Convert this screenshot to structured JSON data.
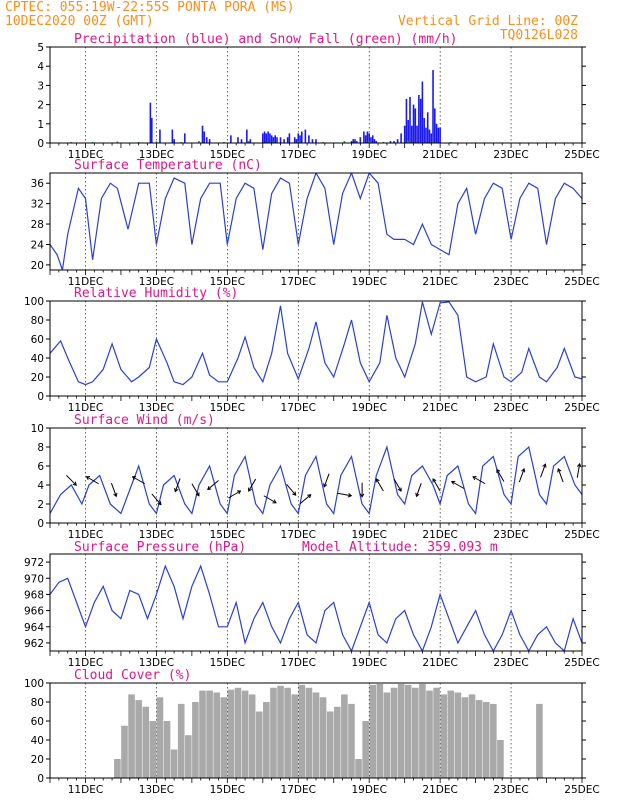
{
  "header": {
    "line1_left": "CPTEC:   055:19W-22:55S   PONTA PORA (MS)",
    "line2_left": "10DEC2020 00Z (GMT)",
    "line2_right": "Vertical Grid Line: 00Z",
    "line3_right": "TQ0126L028"
  },
  "colors": {
    "precip": "#1a1aee",
    "snow": "#1a9a1a",
    "line": "#2a3fd6",
    "cloud": "#a9a9a9",
    "title": "#e0168a",
    "header": "#ff8c1a"
  },
  "x_axis": {
    "ticks": [
      "11DEC",
      "13DEC",
      "15DEC",
      "17DEC",
      "19DEC",
      "21DEC",
      "23DEC",
      "25DEC"
    ],
    "tick_days": [
      11,
      13,
      15,
      17,
      19,
      21,
      23,
      25
    ],
    "start_day": 10,
    "end_day": 25
  },
  "chart_data": [
    {
      "id": "precip",
      "type": "bar",
      "title": "Precipitation (blue) and Snow Fall (green) (mm/h)",
      "ylim": [
        0,
        5
      ],
      "yticks": [
        0,
        1,
        2,
        3,
        4,
        5
      ],
      "x": [
        12.83,
        12.87,
        13.1,
        13.45,
        13.5,
        13.8,
        14.3,
        14.35,
        14.42,
        14.5,
        15.1,
        15.3,
        15.4,
        15.55,
        15.65,
        16.0,
        16.05,
        16.1,
        16.15,
        16.2,
        16.25,
        16.3,
        16.35,
        16.4,
        16.5,
        16.6,
        16.7,
        16.75,
        16.9,
        16.95,
        17.0,
        17.05,
        17.1,
        17.2,
        17.3,
        17.4,
        17.5,
        18.5,
        18.55,
        18.6,
        18.65,
        18.75,
        18.85,
        18.9,
        18.95,
        19.0,
        19.05,
        19.1,
        19.15,
        19.2,
        19.6,
        19.7,
        19.8,
        19.9,
        20.0,
        20.05,
        20.1,
        20.15,
        20.2,
        20.25,
        20.3,
        20.35,
        20.4,
        20.45,
        20.5,
        20.55,
        20.6,
        20.65,
        20.7,
        20.75,
        20.8,
        20.85,
        20.9,
        20.95,
        21.0
      ],
      "values": [
        2.1,
        1.3,
        0.7,
        0.7,
        0.2,
        0.5,
        0.9,
        0.6,
        0.3,
        0.2,
        0.4,
        0.3,
        0.2,
        0.7,
        0.2,
        0.5,
        0.6,
        0.5,
        0.6,
        0.5,
        0.4,
        0.3,
        0.4,
        0.3,
        0.3,
        0.2,
        0.3,
        0.5,
        0.3,
        0.2,
        0.5,
        0.4,
        0.6,
        0.7,
        0.4,
        0.2,
        0.2,
        0.1,
        0.2,
        0.2,
        0.1,
        0.3,
        0.6,
        0.4,
        0.6,
        0.5,
        0.3,
        0.4,
        0.2,
        0.1,
        0.1,
        0.1,
        0.2,
        0.5,
        0.9,
        2.3,
        1.2,
        2.4,
        0.9,
        2.0,
        1.8,
        0.9,
        2.5,
        2.3,
        3.2,
        1.3,
        0.8,
        1.6,
        0.7,
        0.5,
        3.8,
        1.8,
        1.0,
        0.8,
        0.8
      ],
      "snow_x": [
        10.6,
        11.2,
        11.9,
        12.5,
        13.0,
        13.7,
        14.2,
        14.9,
        15.6,
        16.3,
        17.0,
        17.7,
        18.3,
        19.0,
        19.4,
        20.1,
        20.8,
        21.3
      ],
      "snow_values": [
        0.05,
        0.05,
        0.08,
        0.05,
        0.08,
        0.05,
        0.1,
        0.05,
        0.1,
        0.08,
        0.1,
        0.05,
        0.1,
        0.08,
        0.05,
        0.1,
        0.08,
        0.05
      ]
    },
    {
      "id": "temp",
      "type": "line",
      "title": "Surface Temperature (nC)",
      "ylim": [
        19,
        38
      ],
      "yticks": [
        20,
        24,
        28,
        32,
        36
      ],
      "x": [
        10.0,
        10.2,
        10.35,
        10.5,
        10.8,
        11.0,
        11.2,
        11.45,
        11.7,
        11.9,
        12.2,
        12.5,
        12.8,
        13.0,
        13.25,
        13.5,
        13.8,
        14.0,
        14.25,
        14.5,
        14.8,
        15.0,
        15.25,
        15.5,
        15.75,
        16.0,
        16.25,
        16.5,
        16.75,
        17.0,
        17.25,
        17.5,
        17.75,
        18.0,
        18.25,
        18.5,
        18.75,
        19.0,
        19.25,
        19.5,
        19.7,
        20.0,
        20.25,
        20.5,
        20.75,
        21.0,
        21.25,
        21.5,
        21.75,
        22.0,
        22.25,
        22.5,
        22.75,
        23.0,
        23.25,
        23.5,
        23.75,
        24.0,
        24.25,
        24.5,
        24.75,
        25.0
      ],
      "y": [
        24,
        22,
        19,
        26,
        35,
        33,
        21,
        33,
        36,
        35,
        27,
        36,
        36,
        24,
        33,
        37,
        36,
        24,
        33,
        36,
        36,
        24,
        33,
        36,
        35,
        23,
        34,
        37,
        36,
        24,
        33,
        38,
        35,
        24,
        34,
        38,
        33,
        38,
        36,
        26,
        25,
        25,
        24,
        28,
        24,
        23,
        22,
        32,
        35,
        26,
        33,
        36,
        35,
        25,
        33,
        36,
        35,
        24,
        33,
        36,
        35,
        33
      ]
    },
    {
      "id": "rh",
      "type": "line",
      "title": "Relative Humidity (%)",
      "ylim": [
        0,
        100
      ],
      "yticks": [
        0,
        20,
        40,
        60,
        80,
        100
      ],
      "x": [
        10.0,
        10.3,
        10.5,
        10.8,
        11.0,
        11.2,
        11.5,
        11.75,
        12.0,
        12.3,
        12.5,
        12.8,
        13.0,
        13.3,
        13.5,
        13.75,
        14.0,
        14.3,
        14.5,
        14.75,
        15.0,
        15.3,
        15.5,
        15.75,
        16.0,
        16.25,
        16.5,
        16.7,
        17.0,
        17.3,
        17.5,
        17.75,
        18.0,
        18.3,
        18.5,
        18.75,
        19.0,
        19.3,
        19.5,
        19.75,
        20.0,
        20.3,
        20.5,
        20.75,
        21.0,
        21.25,
        21.5,
        21.75,
        22.0,
        22.3,
        22.5,
        22.8,
        23.0,
        23.3,
        23.5,
        23.8,
        24.0,
        24.3,
        24.5,
        24.8,
        25.0
      ],
      "y": [
        45,
        58,
        40,
        15,
        12,
        15,
        28,
        55,
        28,
        15,
        20,
        30,
        60,
        35,
        15,
        12,
        20,
        45,
        22,
        15,
        15,
        40,
        62,
        30,
        15,
        45,
        95,
        45,
        18,
        50,
        78,
        35,
        20,
        55,
        80,
        35,
        15,
        35,
        85,
        40,
        20,
        55,
        99,
        65,
        98,
        99,
        85,
        20,
        15,
        20,
        55,
        20,
        15,
        25,
        50,
        20,
        15,
        30,
        50,
        20,
        18
      ]
    },
    {
      "id": "wind",
      "type": "line",
      "title": "Surface Wind (m/s)",
      "ylim": [
        0,
        10
      ],
      "yticks": [
        0,
        2,
        4,
        6,
        8,
        10
      ],
      "x": [
        10.0,
        10.3,
        10.6,
        10.9,
        11.1,
        11.4,
        11.7,
        12.0,
        12.2,
        12.5,
        12.8,
        13.0,
        13.2,
        13.5,
        13.8,
        14.0,
        14.2,
        14.5,
        14.8,
        15.0,
        15.2,
        15.5,
        15.8,
        16.0,
        16.2,
        16.5,
        16.8,
        17.0,
        17.2,
        17.5,
        17.8,
        18.0,
        18.2,
        18.5,
        18.8,
        19.0,
        19.2,
        19.5,
        19.8,
        20.0,
        20.2,
        20.5,
        20.8,
        21.0,
        21.2,
        21.5,
        21.8,
        22.0,
        22.2,
        22.5,
        22.8,
        23.0,
        23.2,
        23.5,
        23.8,
        24.0,
        24.2,
        24.5,
        24.8,
        25.0
      ],
      "y": [
        1,
        3,
        4,
        2,
        4,
        5,
        2,
        1,
        3,
        6,
        2,
        1,
        4,
        5,
        2,
        1,
        4,
        6,
        2,
        1,
        5,
        7,
        2,
        1,
        4,
        6,
        2,
        1,
        5,
        7,
        2,
        1,
        5,
        7,
        2,
        1,
        5,
        8,
        3,
        2,
        5,
        6,
        4,
        2,
        5,
        6,
        2,
        1,
        6,
        7,
        3,
        2,
        7,
        8,
        3,
        2,
        6,
        7,
        4,
        3
      ],
      "barbs": [
        {
          "x": 10.6,
          "y": 4.5,
          "dir": 135
        },
        {
          "x": 11.2,
          "y": 4.5,
          "dir": 300
        },
        {
          "x": 11.8,
          "y": 3.5,
          "dir": 160
        },
        {
          "x": 12.5,
          "y": 4.5,
          "dir": 300
        },
        {
          "x": 13.0,
          "y": 2.5,
          "dir": 140
        },
        {
          "x": 13.6,
          "y": 4.0,
          "dir": 200
        },
        {
          "x": 14.1,
          "y": 3.5,
          "dir": 150
        },
        {
          "x": 14.6,
          "y": 4.0,
          "dir": 230
        },
        {
          "x": 15.2,
          "y": 3.0,
          "dir": 60
        },
        {
          "x": 15.7,
          "y": 4.0,
          "dir": 210
        },
        {
          "x": 16.2,
          "y": 2.5,
          "dir": 120
        },
        {
          "x": 16.8,
          "y": 3.5,
          "dir": 140
        },
        {
          "x": 17.2,
          "y": 2.5,
          "dir": 50
        },
        {
          "x": 17.8,
          "y": 4.5,
          "dir": 200
        },
        {
          "x": 18.3,
          "y": 3.0,
          "dir": 100
        },
        {
          "x": 18.8,
          "y": 3.5,
          "dir": 180
        },
        {
          "x": 19.3,
          "y": 4.0,
          "dir": 330
        },
        {
          "x": 19.8,
          "y": 4.0,
          "dir": 150
        },
        {
          "x": 20.4,
          "y": 3.5,
          "dir": 200
        },
        {
          "x": 20.9,
          "y": 4.0,
          "dir": 330
        },
        {
          "x": 21.5,
          "y": 4.0,
          "dir": 300
        },
        {
          "x": 22.1,
          "y": 4.5,
          "dir": 300
        },
        {
          "x": 22.7,
          "y": 5.0,
          "dir": 330
        },
        {
          "x": 23.3,
          "y": 5.0,
          "dir": 20
        },
        {
          "x": 23.9,
          "y": 5.5,
          "dir": 20
        },
        {
          "x": 24.4,
          "y": 5.0,
          "dir": 340
        },
        {
          "x": 24.9,
          "y": 5.5,
          "dir": 10
        }
      ]
    },
    {
      "id": "pressure",
      "type": "line",
      "title": "Surface Pressure (hPa)",
      "subtitle": "Model Altitude: 359.093 m",
      "ylim": [
        961,
        973
      ],
      "yticks": [
        962,
        964,
        966,
        968,
        970,
        972
      ],
      "x": [
        10.0,
        10.25,
        10.5,
        10.75,
        11.0,
        11.25,
        11.5,
        11.75,
        12.0,
        12.25,
        12.5,
        12.75,
        13.0,
        13.25,
        13.5,
        13.75,
        14.0,
        14.25,
        14.5,
        14.75,
        15.0,
        15.25,
        15.5,
        15.75,
        16.0,
        16.25,
        16.5,
        16.75,
        17.0,
        17.25,
        17.5,
        17.75,
        18.0,
        18.25,
        18.5,
        18.75,
        19.0,
        19.25,
        19.5,
        19.75,
        20.0,
        20.25,
        20.5,
        20.75,
        21.0,
        21.25,
        21.5,
        21.75,
        22.0,
        22.25,
        22.5,
        22.75,
        23.0,
        23.25,
        23.5,
        23.75,
        24.0,
        24.25,
        24.5,
        24.75,
        25.0
      ],
      "y": [
        968,
        969.5,
        970,
        967,
        964,
        967,
        969,
        966,
        965,
        968.5,
        968,
        965,
        968,
        971.5,
        969,
        965,
        969,
        971.5,
        968,
        964,
        964,
        967,
        962,
        965,
        967,
        964,
        962,
        965,
        967,
        963,
        962,
        966,
        967,
        963,
        961,
        964,
        967,
        963,
        962,
        965,
        966,
        963,
        961,
        964,
        968,
        965,
        962,
        964,
        966,
        963,
        961,
        963,
        966,
        963,
        961,
        963,
        964,
        962,
        961,
        965,
        962
      ]
    },
    {
      "id": "cloud",
      "type": "bar",
      "title": "Cloud Cover (%)",
      "ylim": [
        0,
        100
      ],
      "yticks": [
        0,
        20,
        40,
        60,
        80,
        100
      ],
      "x": [
        11.9,
        12.1,
        12.3,
        12.5,
        12.7,
        12.9,
        13.1,
        13.3,
        13.5,
        13.7,
        13.9,
        14.1,
        14.3,
        14.5,
        14.7,
        14.9,
        15.1,
        15.3,
        15.5,
        15.7,
        15.9,
        16.1,
        16.3,
        16.5,
        16.7,
        16.9,
        17.1,
        17.3,
        17.5,
        17.7,
        17.9,
        18.1,
        18.3,
        18.5,
        18.7,
        18.9,
        19.1,
        19.3,
        19.5,
        19.7,
        19.9,
        20.1,
        20.3,
        20.5,
        20.7,
        20.9,
        21.1,
        21.3,
        21.5,
        21.7,
        21.9,
        22.1,
        22.3,
        22.5,
        22.7,
        23.8
      ],
      "values": [
        20,
        55,
        88,
        82,
        75,
        60,
        85,
        60,
        30,
        78,
        45,
        80,
        92,
        92,
        90,
        85,
        93,
        95,
        92,
        88,
        70,
        80,
        95,
        97,
        95,
        88,
        98,
        95,
        90,
        85,
        70,
        75,
        88,
        78,
        20,
        60,
        98,
        99,
        90,
        95,
        99,
        98,
        95,
        99,
        92,
        95,
        88,
        92,
        90,
        85,
        88,
        82,
        80,
        78,
        40,
        78
      ]
    }
  ]
}
